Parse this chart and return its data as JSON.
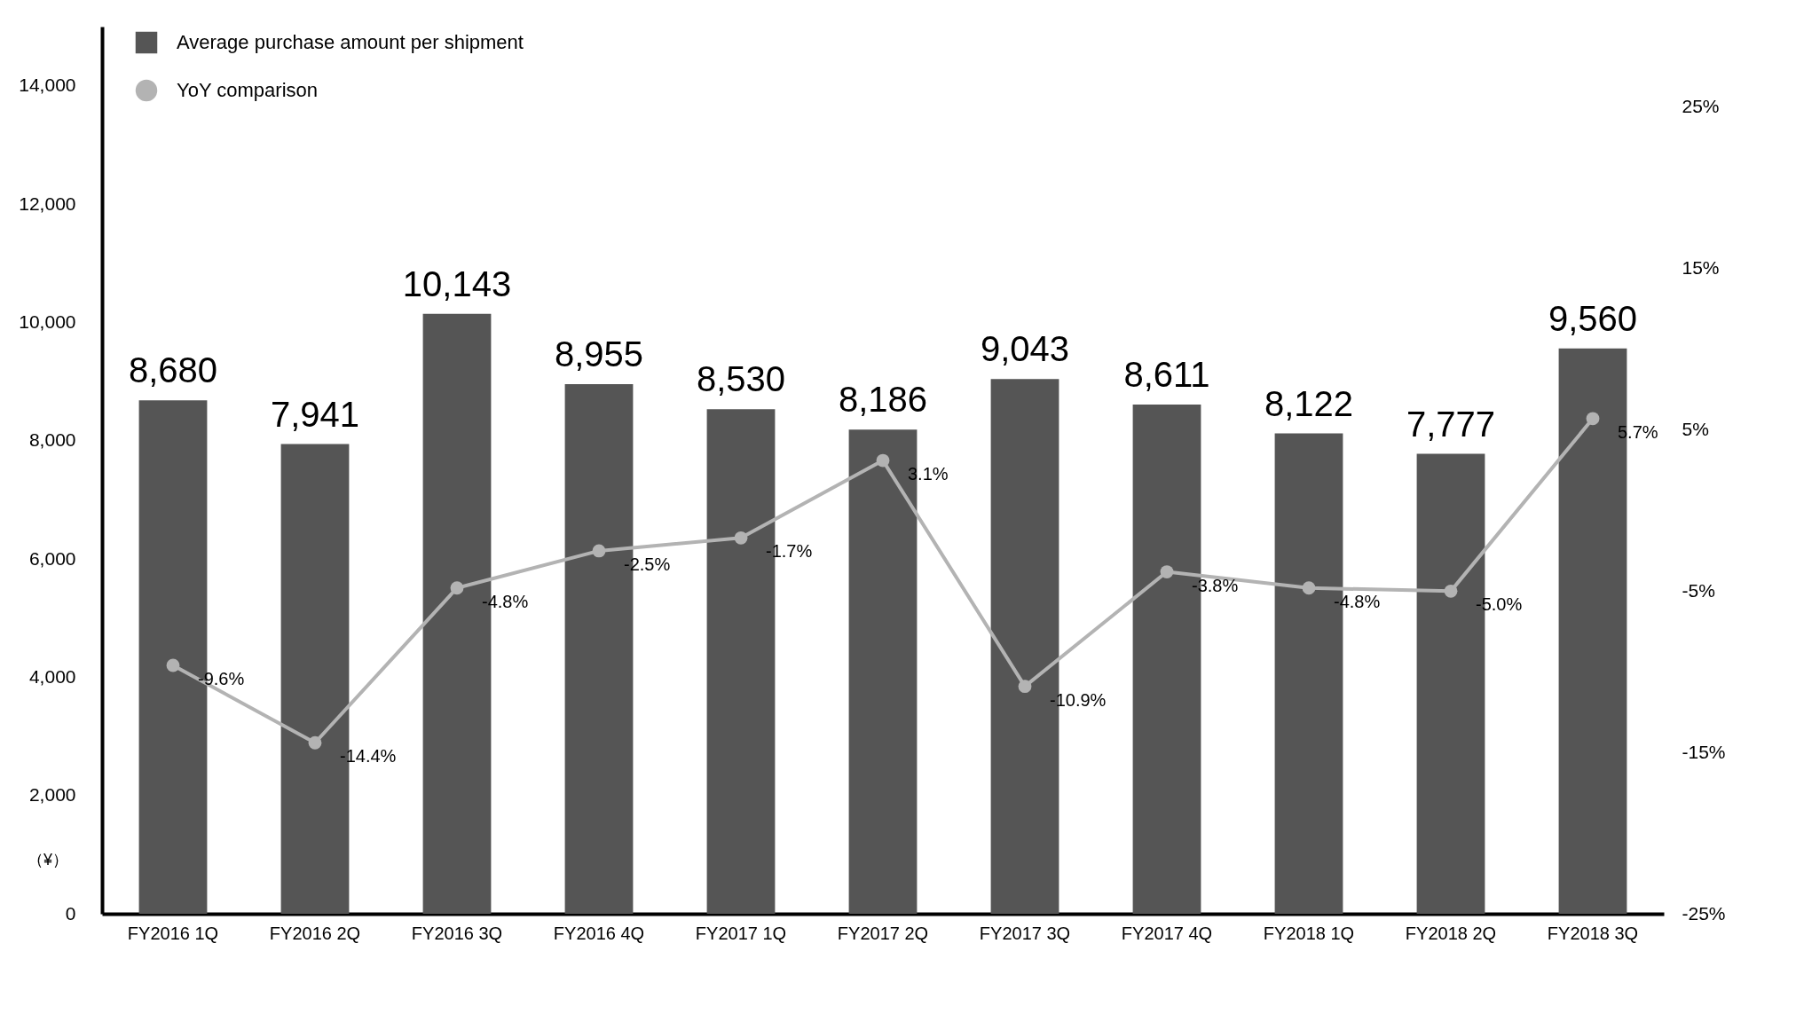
{
  "chart_data": {
    "type": "bar",
    "categories": [
      "FY2016 1Q",
      "FY2016 2Q",
      "FY2016 3Q",
      "FY2016 4Q",
      "FY2017 1Q",
      "FY2017 2Q",
      "FY2017 3Q",
      "FY2017 4Q",
      "FY2018 1Q",
      "FY2018 2Q",
      "FY2018 3Q"
    ],
    "series": [
      {
        "name": "Average purchase amount per shipment",
        "color": "#555555",
        "values": [
          8680,
          7941,
          10143,
          8955,
          8530,
          8186,
          9043,
          8611,
          8122,
          7777,
          9560
        ],
        "value_labels": [
          "8,680",
          "7,941",
          "10,143",
          "8,955",
          "8,530",
          "8,186",
          "9,043",
          "8,611",
          "8,122",
          "7,777",
          "9,560"
        ]
      },
      {
        "name": "YoY comparison",
        "type": "line",
        "axis": "y2",
        "color": "#b3b3b3",
        "values": [
          -9.6,
          -14.4,
          -4.8,
          -2.5,
          -1.7,
          3.1,
          -10.9,
          -3.8,
          -4.8,
          -5.0,
          5.7
        ],
        "value_labels": [
          "-9.6%",
          "-14.4%",
          "-4.8%",
          "-2.5%",
          "-1.7%",
          "3.1%",
          "-10.9%",
          "-3.8%",
          "-4.8%",
          "-5.0%",
          "5.7%"
        ]
      }
    ],
    "ylim": [
      0,
      15000
    ],
    "yticks": [
      0,
      {
        "value": 2000,
        "label": "2,000"
      },
      {
        "value": 4000,
        "label": "4,000"
      },
      {
        "value": 6000,
        "label": "6,000"
      },
      {
        "value": 8000,
        "label": "8,000"
      },
      {
        "value": 10000,
        "label": "10,000"
      },
      {
        "value": 12000,
        "label": "12,000"
      },
      {
        "value": 14000,
        "label": "14,000"
      }
    ],
    "y2lim": [
      -25,
      30
    ],
    "y2ticks": [
      {
        "value": -25,
        "label": "-25%"
      },
      {
        "value": -15,
        "label": "-15%"
      },
      {
        "value": -5,
        "label": "-5%"
      },
      {
        "value": 5,
        "label": "5%"
      },
      {
        "value": 15,
        "label": "15%"
      },
      {
        "value": 25,
        "label": "25%"
      }
    ],
    "annotations": [
      "（¥）"
    ],
    "legend": "top left",
    "grid": false,
    "marker": "circle",
    "line_style": "solid"
  }
}
